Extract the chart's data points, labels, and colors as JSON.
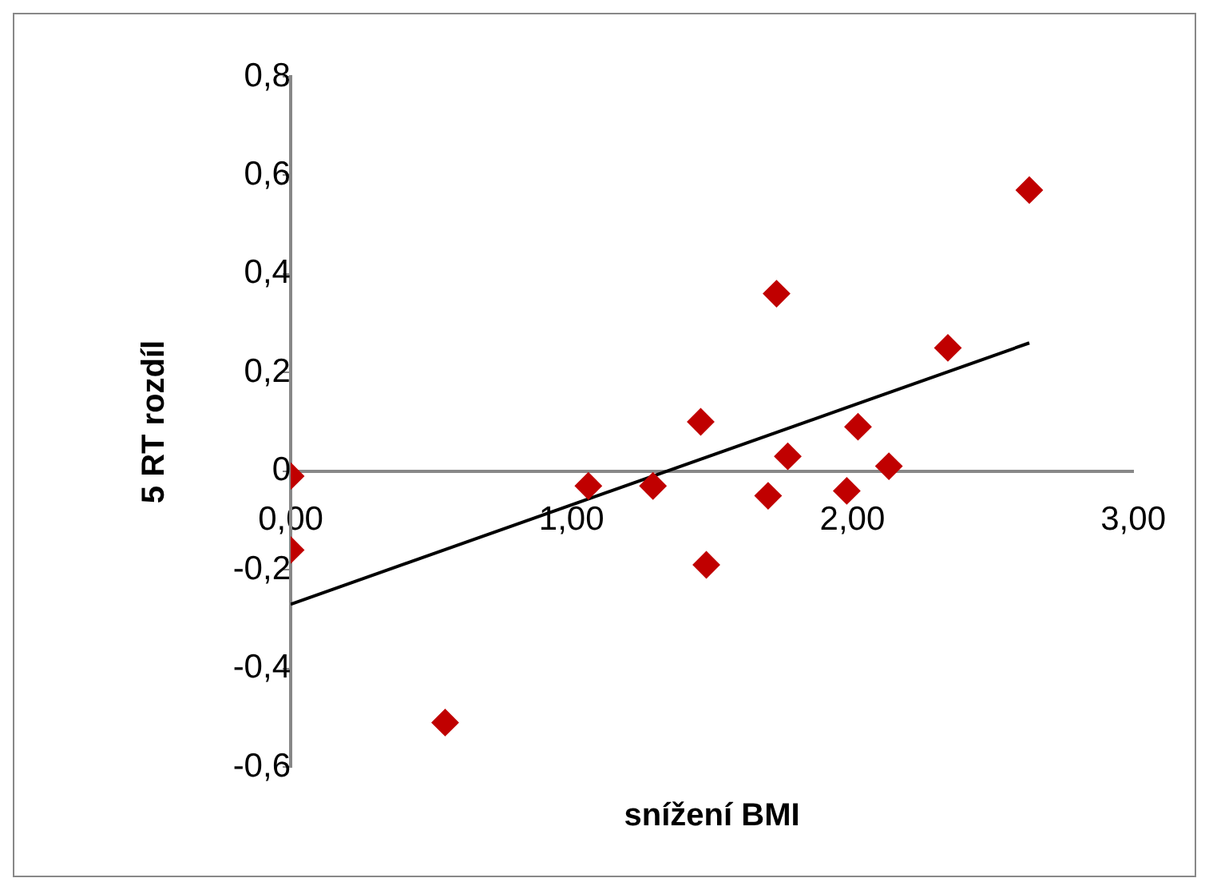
{
  "chart_data": {
    "type": "scatter",
    "xlabel": "snížení BMI",
    "ylabel": "5 RT rozdíl",
    "xlim": [
      0,
      3
    ],
    "ylim": [
      -0.6,
      0.8
    ],
    "xticks": [
      {
        "value": 0,
        "label": "0,00"
      },
      {
        "value": 1,
        "label": "1,00"
      },
      {
        "value": 2,
        "label": "2,00"
      },
      {
        "value": 3,
        "label": "3,00"
      }
    ],
    "yticks": [
      {
        "value": -0.6,
        "label": "-0,6"
      },
      {
        "value": -0.4,
        "label": "-0,4"
      },
      {
        "value": -0.2,
        "label": "-0,2"
      },
      0,
      {
        "value": 0.2,
        "label": "0,2"
      },
      {
        "value": 0.4,
        "label": "0,4"
      },
      {
        "value": 0.6,
        "label": "0,6"
      },
      {
        "value": 0.8,
        "label": "0,8"
      }
    ],
    "grid": false,
    "legend": false,
    "series": [
      {
        "type": "scatter",
        "marker": "diamond",
        "color": "#c00000",
        "x": [
          0,
          0,
          0.55,
          1.06,
          1.29,
          1.46,
          1.48,
          1.7,
          1.73,
          1.77,
          1.98,
          2.02,
          2.13,
          2.34,
          2.63
        ],
        "values": [
          -0.01,
          -0.16,
          -0.51,
          -0.03,
          -0.03,
          0.1,
          -0.19,
          -0.05,
          0.36,
          0.03,
          -0.04,
          0.09,
          0.01,
          0.25,
          0.57
        ]
      },
      {
        "type": "line",
        "marker": "none",
        "color": "#000000",
        "x": [
          0,
          2.63
        ],
        "values": [
          -0.27,
          0.26
        ]
      }
    ]
  }
}
